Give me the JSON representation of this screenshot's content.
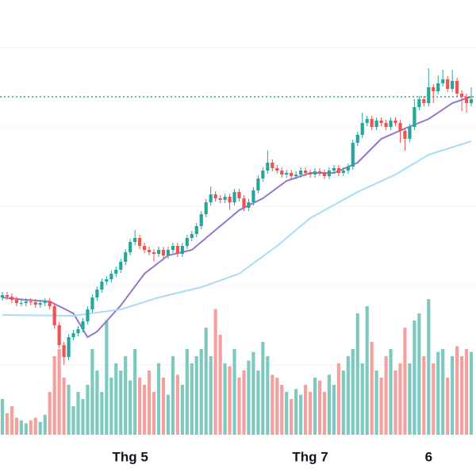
{
  "chart_data": {
    "type": "candlestick",
    "xlim": [
      -0.5,
      100
    ],
    "xticks": [
      {
        "value": 27,
        "label": "Thg 5"
      },
      {
        "value": 65,
        "label": "Thg 7"
      },
      {
        "value": 90,
        "label": "6"
      }
    ],
    "ylim": [
      0,
      600
    ],
    "yticks": [
      140,
      240,
      340,
      440,
      540
    ],
    "grid": true,
    "up_color": "#26a69a",
    "down_color": "#ef5350",
    "volume_up_color": "#7fc8c0",
    "volume_down_color": "#f4a19e",
    "price_line": 478,
    "open": [
      225,
      228,
      226,
      222,
      218,
      218,
      220,
      219,
      216,
      218,
      220,
      214,
      190,
      165,
      150,
      175,
      180,
      185,
      195,
      210,
      225,
      235,
      245,
      248,
      255,
      260,
      270,
      282,
      295,
      300,
      290,
      285,
      282,
      280,
      285,
      278,
      285,
      290,
      280,
      290,
      300,
      305,
      315,
      330,
      345,
      355,
      350,
      348,
      352,
      345,
      358,
      350,
      338,
      345,
      360,
      375,
      385,
      395,
      388,
      385,
      380,
      382,
      378,
      380,
      385,
      382,
      380,
      384,
      382,
      378,
      385,
      388,
      382,
      385,
      390,
      420,
      430,
      445,
      450,
      440,
      448,
      445,
      440,
      448,
      445,
      435,
      425,
      440,
      465,
      475,
      470,
      490,
      485,
      495,
      500,
      488,
      498,
      482,
      478,
      470
    ],
    "high": [
      232,
      232,
      230,
      226,
      222,
      224,
      224,
      223,
      222,
      224,
      224,
      218,
      194,
      169,
      179,
      184,
      189,
      199,
      214,
      229,
      239,
      249,
      252,
      259,
      264,
      274,
      286,
      299,
      310,
      304,
      294,
      289,
      286,
      289,
      289,
      289,
      294,
      294,
      294,
      304,
      309,
      319,
      334,
      349,
      365,
      359,
      354,
      356,
      356,
      362,
      362,
      354,
      349,
      364,
      379,
      389,
      410,
      399,
      392,
      389,
      386,
      386,
      384,
      389,
      389,
      386,
      388,
      388,
      386,
      389,
      392,
      392,
      389,
      394,
      424,
      434,
      458,
      454,
      454,
      452,
      452,
      449,
      452,
      452,
      449,
      439,
      444,
      475,
      479,
      479,
      514,
      494,
      505,
      512,
      504,
      512,
      502,
      486,
      482,
      490
    ],
    "low": [
      221,
      222,
      218,
      214,
      214,
      214,
      215,
      212,
      212,
      214,
      210,
      186,
      161,
      140,
      146,
      171,
      176,
      181,
      191,
      206,
      221,
      231,
      241,
      244,
      251,
      256,
      266,
      278,
      291,
      286,
      281,
      278,
      270,
      276,
      274,
      274,
      281,
      276,
      276,
      286,
      296,
      301,
      311,
      326,
      341,
      346,
      344,
      344,
      335,
      341,
      346,
      334,
      334,
      341,
      356,
      371,
      381,
      384,
      381,
      376,
      376,
      374,
      374,
      376,
      378,
      376,
      376,
      378,
      374,
      374,
      381,
      378,
      378,
      381,
      386,
      416,
      426,
      441,
      436,
      436,
      441,
      436,
      436,
      441,
      420,
      410,
      421,
      436,
      461,
      466,
      466,
      470,
      481,
      491,
      484,
      484,
      478,
      460,
      458,
      466
    ],
    "close": [
      228,
      226,
      222,
      218,
      218,
      220,
      219,
      216,
      218,
      220,
      214,
      190,
      165,
      150,
      175,
      180,
      185,
      195,
      210,
      225,
      235,
      245,
      248,
      255,
      260,
      270,
      282,
      295,
      300,
      290,
      285,
      282,
      280,
      285,
      278,
      285,
      290,
      280,
      290,
      300,
      305,
      315,
      330,
      345,
      355,
      350,
      348,
      352,
      345,
      358,
      350,
      338,
      345,
      360,
      375,
      385,
      395,
      388,
      385,
      380,
      382,
      378,
      380,
      385,
      382,
      380,
      384,
      382,
      378,
      385,
      388,
      382,
      385,
      390,
      420,
      430,
      445,
      450,
      440,
      448,
      445,
      440,
      448,
      445,
      435,
      425,
      440,
      465,
      475,
      470,
      490,
      485,
      495,
      500,
      488,
      498,
      482,
      478,
      470,
      475
    ],
    "volume_ylim": [
      0,
      100
    ],
    "volume": [
      25,
      15,
      20,
      12,
      10,
      8,
      10,
      12,
      9,
      14,
      30,
      55,
      60,
      40,
      35,
      20,
      30,
      25,
      35,
      60,
      45,
      30,
      80,
      40,
      50,
      45,
      55,
      38,
      60,
      40,
      35,
      45,
      30,
      50,
      40,
      28,
      55,
      42,
      35,
      60,
      50,
      55,
      60,
      75,
      55,
      88,
      70,
      50,
      48,
      60,
      40,
      45,
      52,
      58,
      45,
      65,
      55,
      42,
      40,
      35,
      30,
      25,
      32,
      28,
      35,
      30,
      40,
      38,
      30,
      42,
      35,
      50,
      45,
      55,
      60,
      85,
      50,
      90,
      65,
      45,
      40,
      55,
      60,
      45,
      50,
      75,
      50,
      80,
      85,
      55,
      95,
      50,
      58,
      60,
      40,
      55,
      62,
      55,
      60,
      58
    ],
    "lines": [
      {
        "color": "#9575cd",
        "x": [
          0,
          5,
          10,
          15,
          18,
          20,
          25,
          30,
          35,
          40,
          45,
          50,
          55,
          60,
          65,
          70,
          75,
          80,
          85,
          90,
          95,
          99
        ],
        "values": [
          225,
          222,
          220,
          205,
          175,
          182,
          215,
          255,
          278,
          285,
          310,
          335,
          350,
          372,
          382,
          382,
          395,
          425,
          438,
          450,
          470,
          478
        ]
      },
      {
        "color": "#a8dcf5",
        "x": [
          0,
          15,
          25,
          33,
          42,
          50,
          58,
          65,
          75,
          83,
          90,
          99
        ],
        "values": [
          203,
          202,
          210,
          225,
          238,
          255,
          290,
          325,
          358,
          380,
          405,
          422
        ]
      }
    ]
  }
}
